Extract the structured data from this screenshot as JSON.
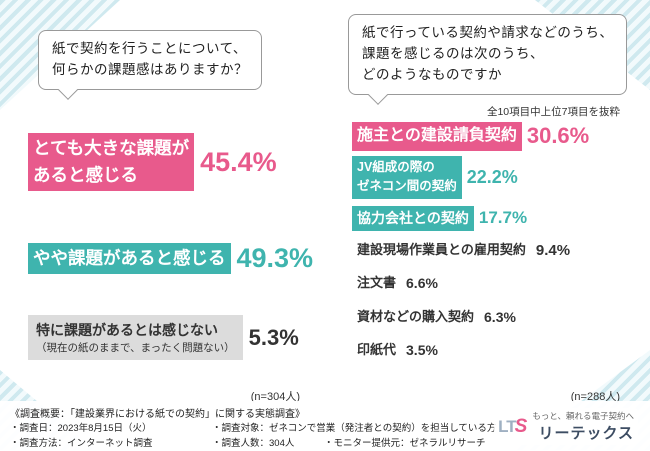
{
  "accent": {
    "pink": "#e85a8c",
    "teal": "#3fb4ae",
    "gray": "#dcdcdc"
  },
  "bubble_left": {
    "text": "紙で契約を行うことについて、\n何らかの課題感はありますか？"
  },
  "bubble_right": {
    "text": "紙で行っている契約や請求などのうち、\n課題を感じるのは次のうち、\nどのようなものですか"
  },
  "right_note": "全10項目中上位7項目を抜粋",
  "left_chart": {
    "items": [
      {
        "label": "とても大きな課題が\nあると感じる",
        "value": "45.4%"
      },
      {
        "label": "やや課題があると感じる",
        "value": "49.3%"
      },
      {
        "label": "特に課題があるとは感じない",
        "sublabel": "（現在の紙のままで、まったく問題ない）",
        "value": "5.3%"
      }
    ],
    "n_label": "(n=304人)"
  },
  "right_chart": {
    "items": [
      {
        "label": "施主との建設請負契約",
        "value": "30.6%"
      },
      {
        "label": "JV組成の際の\nゼネコン間の契約",
        "value": "22.2%"
      },
      {
        "label": "協力会社との契約",
        "value": "17.7%"
      },
      {
        "label": "建設現場作業員との雇用契約",
        "value": "9.4%"
      },
      {
        "label": "注文書",
        "value": "6.6%"
      },
      {
        "label": "資材などの購入契約",
        "value": "6.3%"
      },
      {
        "label": "印紙代",
        "value": "3.5%"
      }
    ],
    "n_label": "(n=288人)"
  },
  "footer": {
    "title": "《調査概要：「建設業界における紙での契約」に関する実態調査》",
    "row1": [
      "・調査日：2023年8月15日（火）",
      "・調査対象：ゼネコンで営業（発注者との契約）を担当している方"
    ],
    "row2": [
      "・調査方法：インターネット調査",
      "・調査人数：304人",
      "・モニター提供元：ゼネラルリサーチ"
    ]
  },
  "logo": {
    "mark_lt": "LT",
    "mark_s": "S",
    "tagline": "もっと、頼れる電子契約へ",
    "brand": "リーテックス"
  },
  "chart_data": [
    {
      "type": "bar",
      "title": "紙で契約を行うことについて、何らかの課題感はありますか？",
      "categories": [
        "とても大きな課題があると感じる",
        "やや課題があると感じる",
        "特に課題があるとは感じない（現在の紙のままで、まったく問題ない）"
      ],
      "values": [
        45.4,
        49.3,
        5.3
      ],
      "unit": "%",
      "n": 304
    },
    {
      "type": "bar",
      "title": "紙で行っている契約や請求などのうち、課題を感じるのは次のうち、どのようなものですか",
      "note": "全10項目中上位7項目を抜粋",
      "categories": [
        "施主との建設請負契約",
        "JV組成の際のゼネコン間の契約",
        "協力会社との契約",
        "建設現場作業員との雇用契約",
        "注文書",
        "資材などの購入契約",
        "印紙代"
      ],
      "values": [
        30.6,
        22.2,
        17.7,
        9.4,
        6.6,
        6.3,
        3.5
      ],
      "unit": "%",
      "n": 288
    }
  ]
}
